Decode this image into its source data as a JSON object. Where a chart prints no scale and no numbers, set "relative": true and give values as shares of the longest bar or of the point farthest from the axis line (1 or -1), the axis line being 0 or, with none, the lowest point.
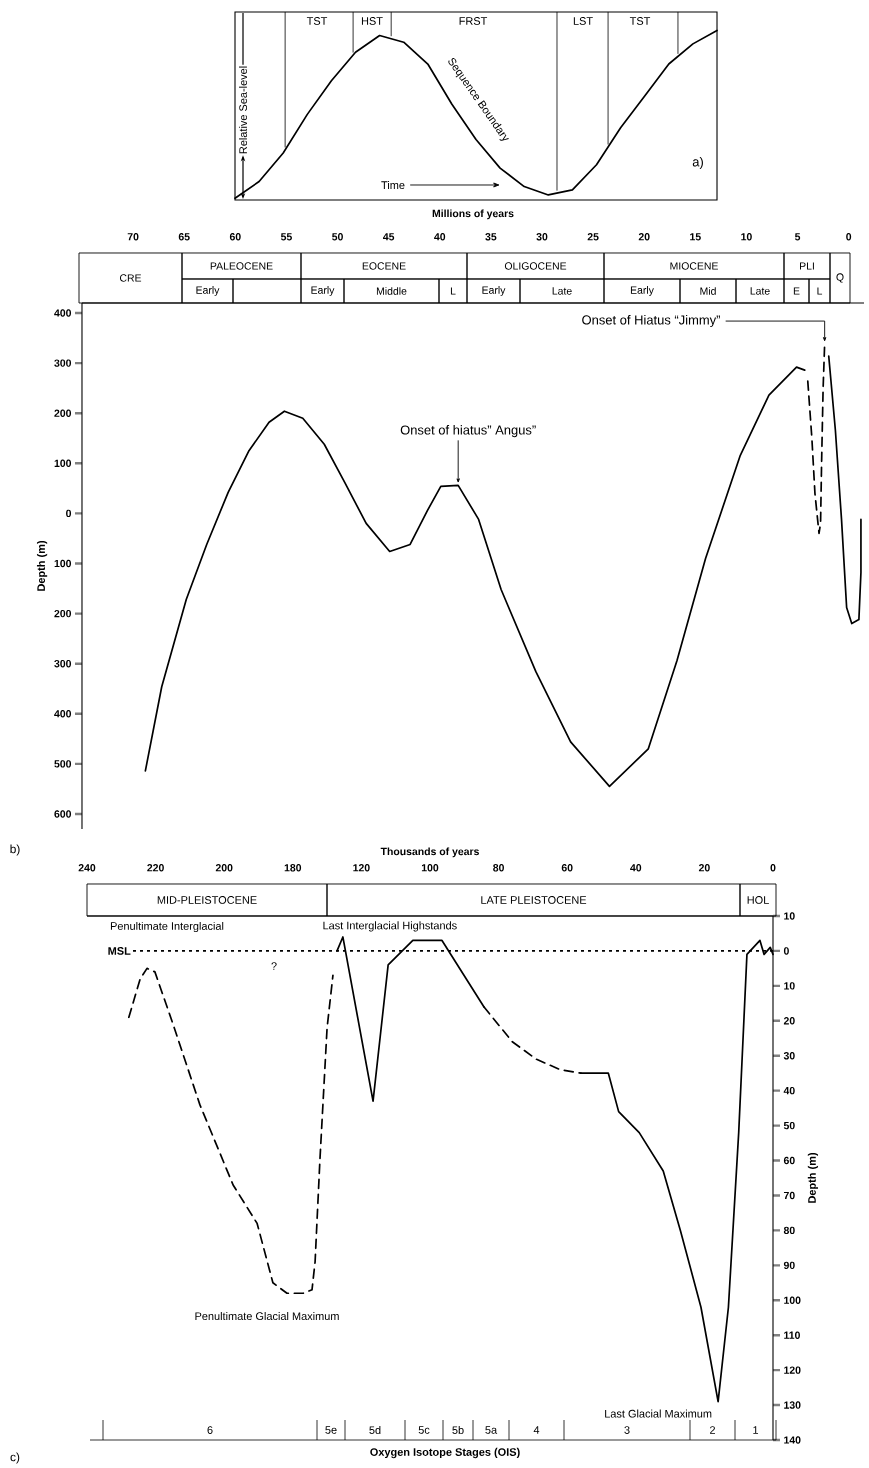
{
  "chart_data": [
    {
      "type": "line",
      "relative": true,
      "color": "#000000",
      "categories": [
        null,
        null,
        null,
        null,
        null,
        null,
        null,
        null,
        null,
        null,
        null,
        null,
        null,
        null,
        null,
        null,
        null,
        null,
        null,
        null,
        null
      ],
      "values": [
        0,
        0.1,
        0.27,
        0.5,
        0.7,
        0.87,
        0.97,
        0.93,
        0.8,
        0.56,
        0.35,
        0.18,
        0.07,
        0.02,
        0.05,
        0.2,
        0.42,
        0.61,
        0.8,
        0.92,
        1
      ],
      "annotations": [
        "TST",
        "HST",
        "FRST",
        "LST",
        "TST",
        "Relative Sea-level",
        "Time",
        "Sequence Boundary",
        "a)"
      ]
    },
    {
      "type": "line",
      "xlabel": "Millions of years",
      "ylabel": "Depth (m)",
      "xlim": [
        75,
        -1.5
      ],
      "xticks": [
        70,
        65,
        60,
        55,
        50,
        45,
        40,
        35,
        30,
        25,
        20,
        15,
        10,
        5,
        0
      ],
      "ylim": [
        -630,
        420
      ],
      "yticks": [
        400,
        300,
        200,
        100,
        0,
        {
          "value": -100,
          "label": "100"
        },
        {
          "value": -200,
          "label": "200"
        },
        {
          "value": -300,
          "label": "300"
        },
        {
          "value": -400,
          "label": "400"
        },
        {
          "value": -500,
          "label": "500"
        },
        {
          "value": -600,
          "label": "600"
        }
      ],
      "series": [
        {
          "color": "#000000",
          "line_style": "solid",
          "x": [
            68.8,
            67.2,
            64.8,
            62.8,
            60.7,
            58.7,
            56.7,
            55.2,
            53.4,
            51.3,
            49.3,
            47.2,
            44.9,
            42.9,
            41.2,
            39.9,
            38.2,
            36.2,
            34.0,
            30.6,
            27.2,
            23.4,
            19.6,
            16.8,
            14.0,
            10.6,
            7.8,
            5.1,
            4.3
          ],
          "values": [
            -514,
            -346,
            -172,
            -62,
            42,
            124,
            182,
            204,
            190,
            138,
            62,
            -20,
            -76,
            -62,
            6,
            54,
            56,
            -12,
            -152,
            -316,
            -456,
            -545,
            -470,
            -294,
            -90,
            116,
            236,
            292,
            286
          ]
        },
        {
          "color": "#000000",
          "line_style": "dashed",
          "x": [
            4.0,
            3.6,
            3.3,
            3.0,
            2.9,
            2.75,
            2.65,
            2.5,
            2.35
          ],
          "values": [
            264,
            150,
            40,
            -20,
            -40,
            -20,
            100,
            250,
            338
          ]
        },
        {
          "color": "#000000",
          "line_style": "solid",
          "x": [
            1.95,
            1.3,
            0.7,
            0.2,
            -0.3,
            -1.0,
            -1.2,
            -1.2
          ],
          "values": [
            314,
            166,
            -12,
            -188,
            -220,
            -212,
            -118,
            -12
          ]
        }
      ],
      "annotations": [
        {
          "text": "Onset of hiatus” Angus”",
          "x": 38.2,
          "y": 56
        },
        {
          "text": "Onset of Hiatus “Jimmy”",
          "x": 2.35,
          "y": 338
        },
        "b)",
        "CRE",
        "PALEOCENE",
        "EOCENE",
        "OLIGOCENE",
        "MIOCENE",
        "PLI",
        "Q",
        "Early",
        "Early",
        "Middle",
        "L",
        "Early",
        "Late",
        "Early",
        "Mid",
        "Late",
        "E",
        "L"
      ]
    },
    {
      "type": "line",
      "xlabel": "Thousands of years",
      "ylabel": "Depth (m)",
      "xlim": [
        200,
        0
      ],
      "xticks": [
        120,
        100,
        80,
        60,
        40,
        20,
        0
      ],
      "x2lim": [
        240,
        40
      ],
      "x2ticks": [
        240,
        220,
        200,
        180
      ],
      "ylim": [
        -140,
        10
      ],
      "yticks": [
        10,
        0,
        {
          "value": -10,
          "label": "10"
        },
        {
          "value": -20,
          "label": "20"
        },
        {
          "value": -30,
          "label": "30"
        },
        {
          "value": -40,
          "label": "40"
        },
        {
          "value": -50,
          "label": "50"
        },
        {
          "value": -60,
          "label": "60"
        },
        {
          "value": -70,
          "label": "70"
        },
        {
          "value": -80,
          "label": "80"
        },
        {
          "value": -90,
          "label": "90"
        },
        {
          "value": -100,
          "label": "100"
        },
        {
          "value": -110,
          "label": "110"
        },
        {
          "value": -120,
          "label": "120"
        },
        {
          "value": -130,
          "label": "130"
        },
        {
          "value": -140,
          "label": "140"
        }
      ],
      "series": [
        {
          "color": "#000000",
          "line_style": "dashed",
          "axis": "x2",
          "x": [
            227.8,
            224.5,
            222.5,
            220.2,
            214.9,
            207.1,
            197.4,
            190.4,
            185.8,
            181.7,
            177.0,
            174.4,
            173.5,
            172.1,
            170.0,
            168.3
          ],
          "values": [
            -19,
            -8,
            -5,
            -6,
            -21,
            -44,
            -67,
            -78,
            -95,
            -98,
            -98,
            -97,
            -89,
            -60,
            -22,
            -7
          ]
        },
        {
          "color": "#000000",
          "line_style": "solid",
          "x": [
            127.1,
            125.4,
            116.6,
            112.2,
            105,
            96.5,
            84.3
          ],
          "values": [
            0,
            4,
            -43,
            -4,
            3,
            3,
            -16
          ]
        },
        {
          "color": "#000000",
          "line_style": "dashed",
          "x": [
            84.3,
            76,
            69,
            62,
            56
          ],
          "values": [
            -16,
            -26,
            -31,
            -34,
            -35
          ]
        },
        {
          "color": "#000000",
          "line_style": "solid",
          "x": [
            56,
            48,
            45,
            39,
            32,
            27,
            21,
            16,
            13,
            10,
            7.6,
            3.8,
            2.6,
            0.8,
            0
          ],
          "values": [
            -35,
            -35,
            -46,
            -52,
            -63,
            -80,
            -102,
            -129,
            -102,
            -52,
            -1,
            3,
            -1,
            1,
            -1
          ]
        }
      ],
      "ref_lines": [
        {
          "axis": "y",
          "value": 0,
          "label": "MSL",
          "line_style": "dotted"
        }
      ],
      "annotations": [
        "Penultimate Interglacial",
        {
          "text": "Last Interglacial Highstands",
          "x": 105,
          "y": 3
        },
        "?",
        "Penultimate Glacial Maximum",
        {
          "text": "Last Glacial Maximum",
          "x": 16,
          "y": -129
        },
        "c)",
        "MID-PLEISTOCENE",
        "LATE PLEISTOCENE",
        "HOL",
        "6",
        "5e",
        "5d",
        "5c",
        "5b",
        "5a",
        "4",
        "3",
        "2",
        "1",
        "Oxygen Isotope Stages (OIS)"
      ]
    }
  ]
}
